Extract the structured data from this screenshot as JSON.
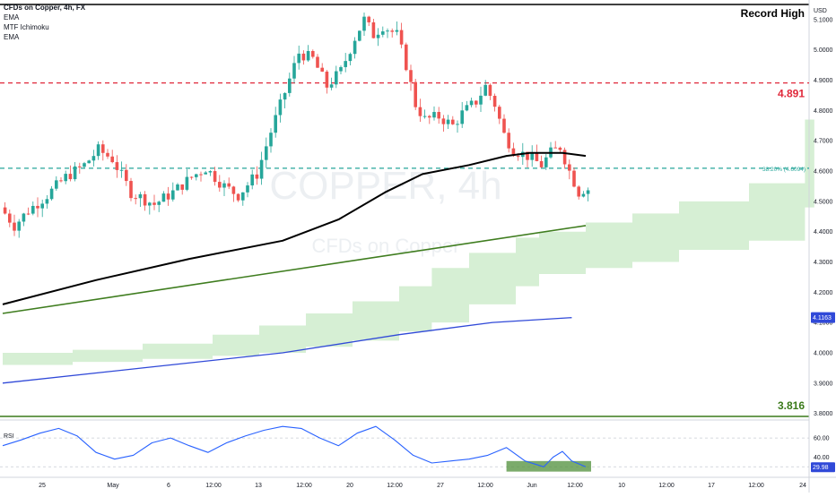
{
  "legend": {
    "symbol": "CFDs on Copper, 4h, FX",
    "indicators": [
      "EMA",
      "MTF Ichimoku",
      "EMA"
    ],
    "currency": "USD"
  },
  "watermark": {
    "ticker": "COPPER, 4h",
    "name": "CFDs on Copper"
  },
  "annotations": {
    "record_high": "Record High",
    "resistance": "4.891",
    "support": "3.816",
    "fib": "38.20% (4.6094)"
  },
  "price_badges": {
    "blue_ema": "4.1163",
    "rsi_value": "29.98"
  },
  "colors": {
    "up": "#26a69a",
    "down": "#ef5350",
    "ema_black": "#000000",
    "ema_blue": "#3049d8",
    "trendline": "#3f7d1f",
    "cloud": "#d6efd4",
    "resistance": "#e0283a",
    "support": "#3a7a1a",
    "fib": "#26a69a",
    "rsi_line": "#2962ff"
  },
  "chart_data": [
    {
      "type": "candlestick",
      "title": "CFDs on Copper, 4h, FX",
      "y_axis_ticks": [
        "5.1000",
        "5.0000",
        "4.9000",
        "4.8000",
        "4.7000",
        "4.6000",
        "4.5000",
        "4.4000",
        "4.3000",
        "4.2000",
        "4.1000",
        "4.0000",
        "3.9000",
        "3.8000"
      ],
      "x_axis_ticks": [
        "25",
        "May",
        "6",
        "12:00",
        "13",
        "12:00",
        "20",
        "12:00",
        "27",
        "12:00",
        "Jun",
        "12:00",
        "10",
        "12:00",
        "17",
        "12:00",
        "24"
      ],
      "ylim": [
        3.79,
        5.15
      ],
      "price_path": {
        "candle_count": 126,
        "anchors": [
          [
            0,
            4.48
          ],
          [
            3,
            4.42
          ],
          [
            6,
            4.47
          ],
          [
            10,
            4.52
          ],
          [
            14,
            4.58
          ],
          [
            18,
            4.62
          ],
          [
            21,
            4.67
          ],
          [
            24,
            4.64
          ],
          [
            28,
            4.53
          ],
          [
            33,
            4.49
          ],
          [
            37,
            4.53
          ],
          [
            41,
            4.58
          ],
          [
            44,
            4.61
          ],
          [
            48,
            4.55
          ],
          [
            51,
            4.52
          ],
          [
            55,
            4.59
          ],
          [
            58,
            4.73
          ],
          [
            61,
            4.86
          ],
          [
            64,
            4.99
          ],
          [
            67,
            4.97
          ],
          [
            70,
            4.88
          ],
          [
            73,
            4.93
          ],
          [
            76,
            5.04
          ],
          [
            78,
            5.1
          ],
          [
            80,
            5.05
          ],
          [
            82,
            5.08
          ],
          [
            85,
            5.05
          ],
          [
            87,
            4.95
          ],
          [
            89,
            4.82
          ],
          [
            91,
            4.77
          ],
          [
            94,
            4.78
          ],
          [
            97,
            4.75
          ],
          [
            99,
            4.79
          ],
          [
            102,
            4.83
          ],
          [
            104,
            4.88
          ],
          [
            106,
            4.82
          ],
          [
            108,
            4.72
          ],
          [
            110,
            4.67
          ],
          [
            113,
            4.65
          ],
          [
            116,
            4.62
          ],
          [
            118,
            4.66
          ],
          [
            120,
            4.68
          ],
          [
            122,
            4.6
          ],
          [
            124,
            4.53
          ],
          [
            125,
            4.54
          ]
        ]
      },
      "last_price_reading": 4.54
    },
    {
      "type": "line",
      "name": "EMA (black)",
      "x_index": [
        0,
        20,
        40,
        60,
        72,
        82,
        90,
        100,
        108,
        113,
        120,
        125
      ],
      "values": [
        4.16,
        4.24,
        4.31,
        4.37,
        4.44,
        4.53,
        4.59,
        4.62,
        4.65,
        4.66,
        4.66,
        4.65
      ]
    },
    {
      "type": "line",
      "name": "EMA (blue)",
      "x_index": [
        0,
        30,
        60,
        85,
        105,
        122
      ],
      "values": [
        3.9,
        3.95,
        4.0,
        4.06,
        4.1,
        4.116
      ]
    },
    {
      "type": "line",
      "name": "Trendline",
      "x_index": [
        0,
        125
      ],
      "values": [
        4.13,
        4.42
      ]
    },
    {
      "type": "area",
      "name": "Ichimoku cloud",
      "x_index": [
        0,
        15,
        30,
        45,
        55,
        65,
        75,
        85,
        92,
        100,
        110,
        115,
        125,
        135,
        145,
        160,
        172,
        174
      ],
      "upper": [
        4.0,
        4.01,
        4.03,
        4.06,
        4.09,
        4.13,
        4.17,
        4.22,
        4.28,
        4.33,
        4.38,
        4.4,
        4.43,
        4.46,
        4.5,
        4.56,
        4.77,
        4.79
      ],
      "lower": [
        3.96,
        3.97,
        3.98,
        3.99,
        4.0,
        4.02,
        4.04,
        4.07,
        4.1,
        4.16,
        4.22,
        4.26,
        4.28,
        4.3,
        4.34,
        4.37,
        4.48,
        4.5
      ]
    },
    {
      "type": "line",
      "name": "RSI",
      "y_axis_ticks": [
        "60.00",
        "40.00"
      ],
      "ylim": [
        20,
        75
      ],
      "x_index": [
        0,
        4,
        8,
        12,
        16,
        20,
        24,
        28,
        32,
        36,
        40,
        44,
        48,
        52,
        56,
        60,
        64,
        68,
        72,
        76,
        80,
        84,
        88,
        92,
        96,
        100,
        104,
        108,
        112,
        116,
        118,
        120,
        122,
        125
      ],
      "values": [
        52,
        58,
        65,
        70,
        62,
        45,
        38,
        42,
        55,
        60,
        52,
        45,
        55,
        62,
        68,
        72,
        70,
        60,
        52,
        65,
        72,
        58,
        42,
        34,
        36,
        38,
        42,
        50,
        36,
        30,
        40,
        46,
        36,
        30
      ]
    }
  ]
}
